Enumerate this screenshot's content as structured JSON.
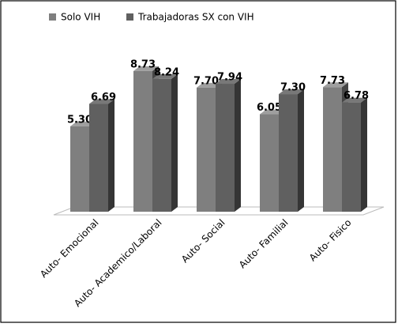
{
  "chart_data": {
    "type": "bar3d",
    "categories": [
      "Auto- Emocional",
      "Auto- Academico/Laboral",
      "Auto- Social",
      "Auto- Familial",
      "Auto- Fisico"
    ],
    "series": [
      {
        "name": "Solo VIH",
        "color": "#7f7f7f",
        "values": [
          5.3,
          8.73,
          7.7,
          6.05,
          7.73
        ],
        "value_labels": [
          "5.30",
          "8.73",
          "7.70",
          "6.05",
          "7.73"
        ]
      },
      {
        "name": "Trabajadoras SX con VIH",
        "color": "#606060",
        "values": [
          6.69,
          8.24,
          7.94,
          7.3,
          6.78
        ],
        "value_labels": [
          "6.69",
          "8.24",
          "7.94",
          "7.30",
          "6.78"
        ]
      }
    ],
    "legend": "top"
  }
}
